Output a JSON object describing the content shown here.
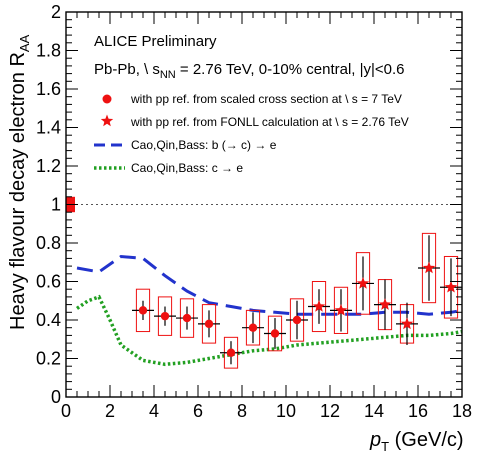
{
  "chart_data": {
    "type": "scatter",
    "title": "ALICE Preliminary",
    "subtitle": "Pb-Pb, \\ s",
    "subtitle_sub": "NN",
    "subtitle_rest": " = 2.76 TeV, 0-10% central, |y|<0.6",
    "xlabel": "p",
    "xlabel_sub": "T",
    "xlabel_unit": " (GeV/c)",
    "ylabel": "Heavy flavour decay electron R",
    "ylabel_sub": "AA",
    "xlim": [
      0,
      18
    ],
    "ylim": [
      0,
      2
    ],
    "x_ticks": [
      0,
      2,
      4,
      6,
      8,
      10,
      12,
      14,
      16,
      18
    ],
    "y_ticks": [
      0,
      0.2,
      0.4,
      0.6,
      0.8,
      1,
      1.2,
      1.4,
      1.6,
      1.8,
      2
    ],
    "x_tick_labels": [
      "0",
      "2",
      "4",
      "6",
      "8",
      "10",
      "12",
      "14",
      "16",
      "18"
    ],
    "y_tick_labels": [
      "0",
      "0.2",
      "0.4",
      "0.6",
      "0.8",
      "1",
      "1.2",
      "1.4",
      "1.6",
      "1.8",
      "2"
    ],
    "reference_line": 1,
    "normalization_box": {
      "y_low": 0.96,
      "y_high": 1.04
    },
    "legend": {
      "position": "top",
      "entries": [
        {
          "marker": "circle",
          "color": "#ee1111",
          "label": "with pp ref. from scaled cross section at \\ s = 7 TeV"
        },
        {
          "marker": "star",
          "color": "#ee1111",
          "label": "with pp ref. from FONLL calculation at \\ s = 2.76 TeV"
        },
        {
          "marker": "dashed-line",
          "color": "#2233cc",
          "label": "Cao,Qin,Bass: b (→ c) → e"
        },
        {
          "marker": "dotted-line",
          "color": "#22a022",
          "label": "Cao,Qin,Bass: c → e"
        }
      ]
    },
    "series": [
      {
        "name": "with pp ref. from scaled cross section at \\ s = 7 TeV",
        "marker": "circle",
        "color": "#ee1111",
        "points": [
          {
            "x": 3.5,
            "xerr": 0.5,
            "y": 0.45,
            "stat": 0.05,
            "sys": 0.11
          },
          {
            "x": 4.5,
            "xerr": 0.5,
            "y": 0.42,
            "stat": 0.05,
            "sys": 0.1
          },
          {
            "x": 5.5,
            "xerr": 0.5,
            "y": 0.41,
            "stat": 0.06,
            "sys": 0.1
          },
          {
            "x": 6.5,
            "xerr": 0.5,
            "y": 0.38,
            "stat": 0.07,
            "sys": 0.1
          },
          {
            "x": 7.5,
            "xerr": 0.5,
            "y": 0.23,
            "stat": 0.06,
            "sys": 0.08
          },
          {
            "x": 8.5,
            "xerr": 0.5,
            "y": 0.36,
            "stat": 0.08,
            "sys": 0.09
          },
          {
            "x": 9.5,
            "xerr": 0.5,
            "y": 0.33,
            "stat": 0.08,
            "sys": 0.09
          },
          {
            "x": 10.5,
            "xerr": 0.5,
            "y": 0.4,
            "stat": 0.1,
            "sys": 0.11
          }
        ]
      },
      {
        "name": "with pp ref. from FONLL calculation at \\ s = 2.76 TeV",
        "marker": "star",
        "color": "#ee1111",
        "points": [
          {
            "x": 11.5,
            "xerr": 0.5,
            "y": 0.47,
            "stat": 0.09,
            "sys": 0.13
          },
          {
            "x": 12.5,
            "xerr": 0.5,
            "y": 0.45,
            "stat": 0.11,
            "sys": 0.12
          },
          {
            "x": 13.5,
            "xerr": 0.5,
            "y": 0.59,
            "stat": 0.14,
            "sys": 0.16
          },
          {
            "x": 14.5,
            "xerr": 0.5,
            "y": 0.48,
            "stat": 0.13,
            "sys": 0.13
          },
          {
            "x": 15.5,
            "xerr": 0.5,
            "y": 0.38,
            "stat": 0.11,
            "sys": 0.1
          },
          {
            "x": 16.5,
            "xerr": 0.5,
            "y": 0.67,
            "stat": 0.17,
            "sys": 0.18
          },
          {
            "x": 17.5,
            "xerr": 0.5,
            "y": 0.57,
            "stat": 0.15,
            "sys": 0.16
          }
        ]
      },
      {
        "name": "Cao,Qin,Bass: b (→ c) → e",
        "type": "line",
        "style": "dashed",
        "color": "#2233cc",
        "x": [
          0.5,
          1.5,
          2.5,
          3.5,
          4.5,
          5.5,
          6.5,
          7.5,
          8.5,
          9.5,
          10.5,
          11.5,
          12.5,
          13.5,
          14.5,
          15.5,
          16.5,
          17.5,
          18
        ],
        "y": [
          0.67,
          0.65,
          0.73,
          0.72,
          0.63,
          0.55,
          0.49,
          0.47,
          0.45,
          0.44,
          0.43,
          0.43,
          0.43,
          0.43,
          0.44,
          0.44,
          0.43,
          0.44,
          0.45
        ]
      },
      {
        "name": "Cao,Qin,Bass: c → e",
        "type": "line",
        "style": "dotted",
        "color": "#22a022",
        "x": [
          0.5,
          1.0,
          1.5,
          2.0,
          2.5,
          3.5,
          4.5,
          5.5,
          6.5,
          7.5,
          8.5,
          9.5,
          10.5,
          11.5,
          12.5,
          13.5,
          14.5,
          15.5,
          16.5,
          17.5,
          18
        ],
        "y": [
          0.46,
          0.5,
          0.52,
          0.4,
          0.27,
          0.19,
          0.17,
          0.18,
          0.2,
          0.22,
          0.24,
          0.25,
          0.27,
          0.28,
          0.29,
          0.3,
          0.31,
          0.32,
          0.32,
          0.33,
          0.34
        ]
      }
    ]
  }
}
